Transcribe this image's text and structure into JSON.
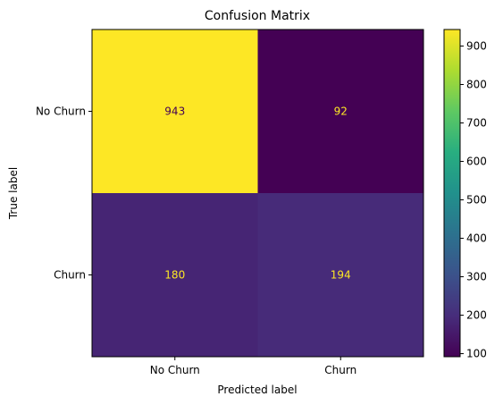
{
  "chart_data": {
    "type": "heatmap",
    "title": "Confusion Matrix",
    "xlabel": "Predicted label",
    "ylabel": "True label",
    "x_categories": [
      "No Churn",
      "Churn"
    ],
    "y_categories": [
      "No Churn",
      "Churn"
    ],
    "values": [
      [
        943,
        92
      ],
      [
        180,
        194
      ]
    ],
    "colormap": "viridis",
    "colorbar": {
      "range": [
        92,
        943
      ],
      "ticks": [
        100,
        200,
        300,
        400,
        500,
        600,
        700,
        800,
        900
      ]
    },
    "annotation_colors": {
      "on_dark": "#fde725",
      "on_light": "#440154"
    },
    "grid": false
  }
}
